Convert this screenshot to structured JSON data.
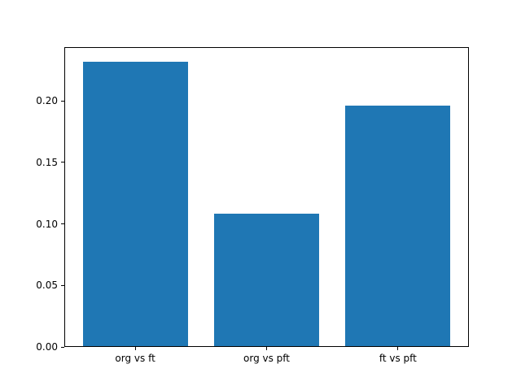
{
  "figure": {
    "background": "#ffffff",
    "spine_color": "#000000",
    "text_color": "#000000"
  },
  "chart_data": {
    "type": "bar",
    "title": "",
    "xlabel": "",
    "ylabel": "",
    "categories": [
      "org vs ft",
      "org vs pft",
      "ft vs pft"
    ],
    "values": [
      0.232,
      0.108,
      0.196
    ],
    "bar_color": "#1f77b4",
    "ylim": [
      0,
      0.2436
    ],
    "xlim": [
      -0.54,
      2.54
    ],
    "bar_width": 0.8,
    "yticks": [
      0.0,
      0.05,
      0.1,
      0.15,
      0.2
    ],
    "ytick_labels": [
      "0.00",
      "0.05",
      "0.10",
      "0.15",
      "0.20"
    ],
    "grid": false,
    "legend": null
  }
}
